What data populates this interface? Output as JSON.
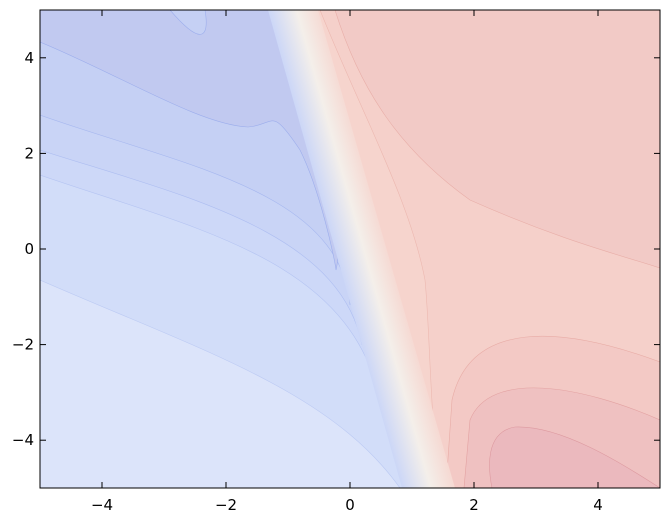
{
  "chart_data": {
    "type": "contour",
    "xlim": [
      -5,
      5
    ],
    "ylim": [
      -5,
      5
    ],
    "xticks": [
      {
        "value": -4,
        "label": "−4"
      },
      {
        "value": -2,
        "label": "−2"
      },
      0,
      2,
      4
    ],
    "yticks": [
      {
        "value": -4,
        "label": "−4"
      },
      {
        "value": -2,
        "label": "−2"
      },
      0,
      2,
      4
    ]
  }
}
